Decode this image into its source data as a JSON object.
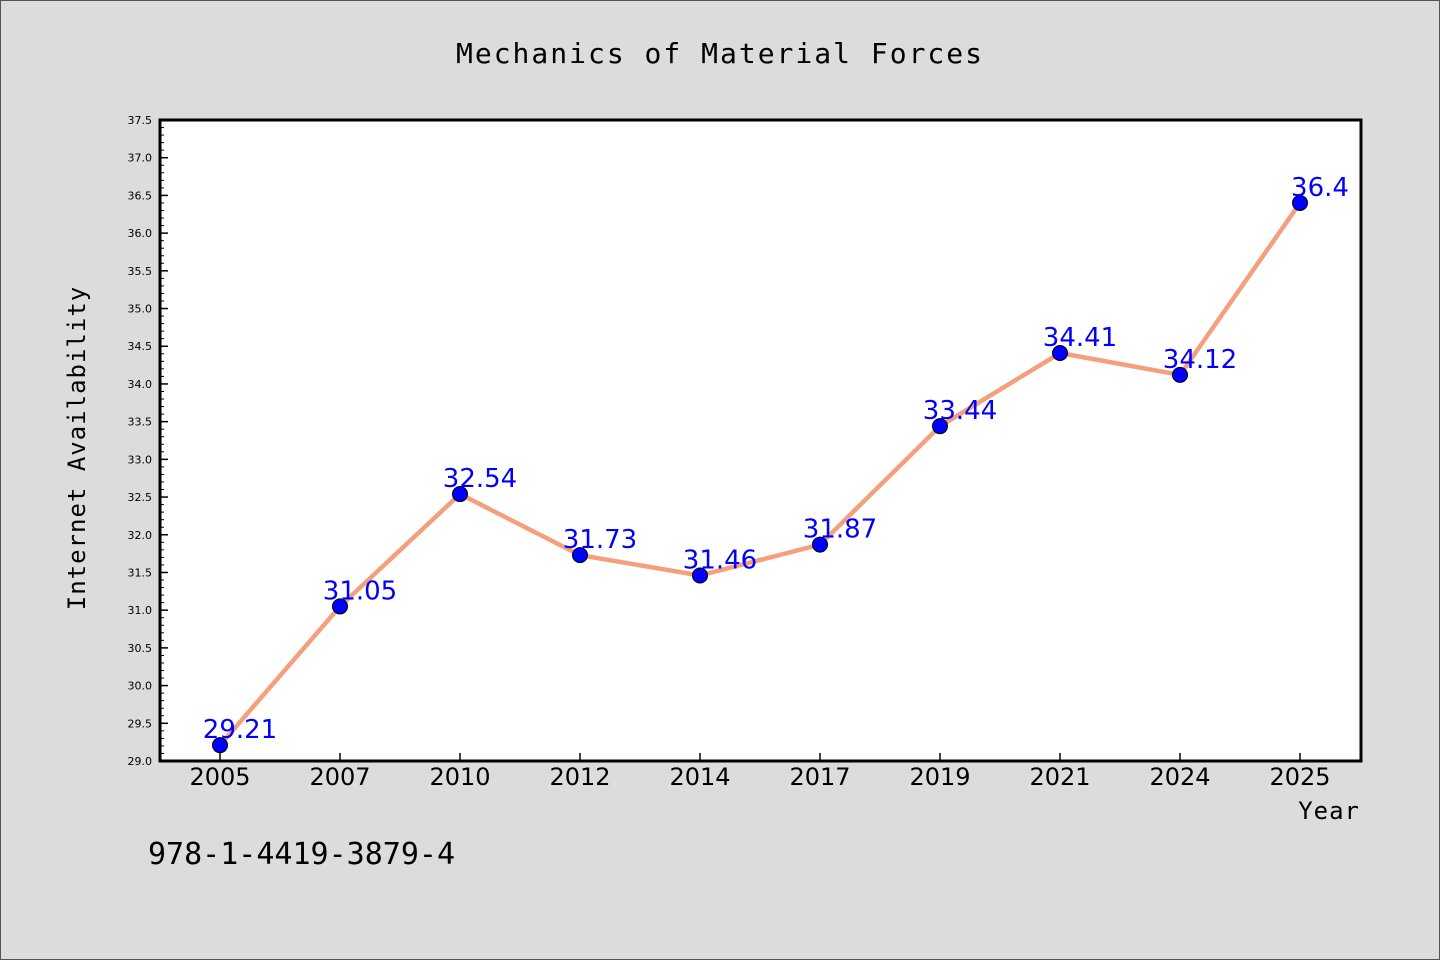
{
  "colors": {
    "background": "#dcdcdc",
    "plot_background": "#ffffff",
    "line": "#f4a07e",
    "marker": "#0000ff",
    "data_label": "#0000ff"
  },
  "footer": {
    "isbn": "978-1-4419-3879-4"
  },
  "chart_data": {
    "type": "line",
    "title": "Mechanics of Material Forces",
    "xlabel": "Year",
    "ylabel": "Internet Availability",
    "categories": [
      "2005",
      "2007",
      "2010",
      "2012",
      "2014",
      "2017",
      "2019",
      "2021",
      "2024",
      "2025"
    ],
    "values": [
      29.21,
      31.05,
      32.54,
      31.73,
      31.46,
      31.87,
      33.44,
      34.41,
      34.12,
      36.4
    ],
    "data_labels": [
      "29.21",
      "31.05",
      "32.54",
      "31.73",
      "31.46",
      "31.87",
      "33.44",
      "34.41",
      "34.12",
      "36.4"
    ],
    "ylim": [
      29.0,
      37.5
    ],
    "yticks": [
      "29.0",
      "29.5",
      "30.0",
      "30.5",
      "31.0",
      "31.5",
      "32.0",
      "32.5",
      "33.0",
      "33.5",
      "34.0",
      "34.5",
      "35.0",
      "35.5",
      "36.0",
      "36.5",
      "37.0",
      "37.5"
    ],
    "grid": false,
    "legend": "none"
  }
}
